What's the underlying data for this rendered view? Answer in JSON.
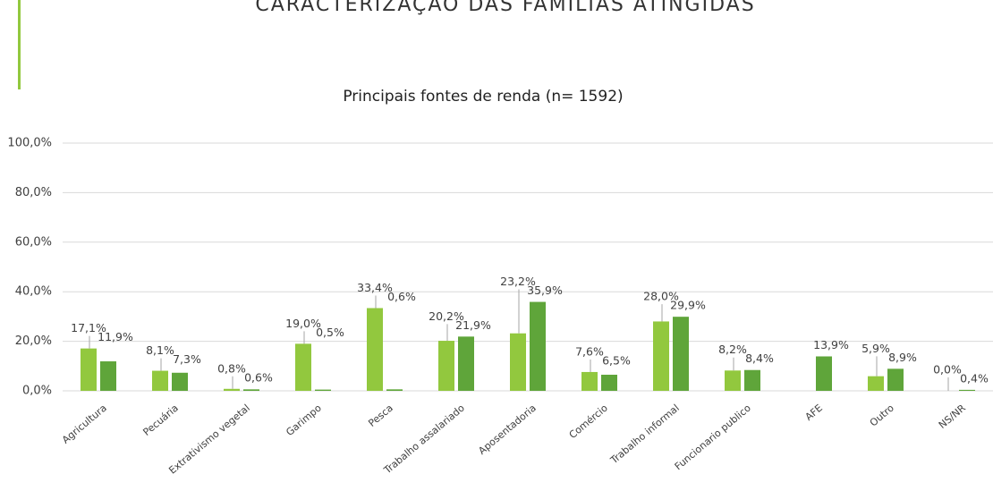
{
  "header": {
    "title": "CARACTERIZAÇÃO DAS FAMÍLIAS ATINGIDAS"
  },
  "chart_data": {
    "type": "bar",
    "title": "Principais fontes de renda (n= 1592)",
    "categories": [
      "Agricultura",
      "Pecuária",
      "Extrativismo vegetal",
      "Garimpo",
      "Pesca",
      "Trabalho assalariado",
      "Aposentadoria",
      "Comércio",
      "Trabalho informal",
      "Funcionario publico",
      "AFE",
      "Outro",
      "NS/NR"
    ],
    "series": [
      {
        "color": "#92c83e",
        "values": [
          17.1,
          8.1,
          0.8,
          19.0,
          33.4,
          20.2,
          23.2,
          7.6,
          28.0,
          8.2,
          null,
          5.9,
          0.0
        ],
        "value_labels": [
          "17,1%",
          "8,1%",
          "0,8%",
          "19,0%",
          "33,4%",
          "20,2%",
          "23,2%",
          "7,6%",
          "28,0%",
          "8,2%",
          null,
          "5,9%",
          "0,0%"
        ]
      },
      {
        "color": "#5fa53a",
        "values": [
          11.9,
          7.3,
          0.6,
          0.5,
          0.6,
          21.9,
          35.9,
          6.5,
          29.9,
          8.4,
          13.9,
          8.9,
          0.4
        ],
        "value_labels": [
          "11,9%",
          "7,3%",
          "0,6%",
          "0,5%",
          "0,6%",
          "21,9%",
          "35,9%",
          "6,5%",
          "29,9%",
          "8,4%",
          "13,9%",
          "8,9%",
          "0,4%"
        ]
      }
    ],
    "ylim": [
      0,
      100
    ],
    "yticks": [
      {
        "value": 0,
        "label": "0,0%"
      },
      {
        "value": 20,
        "label": "20,0%"
      },
      {
        "value": 40,
        "label": "40,0%"
      },
      {
        "value": 60,
        "label": "60,0%"
      },
      {
        "value": 80,
        "label": "80,0%"
      },
      {
        "value": 100,
        "label": "100,0%"
      }
    ],
    "grid": true
  }
}
